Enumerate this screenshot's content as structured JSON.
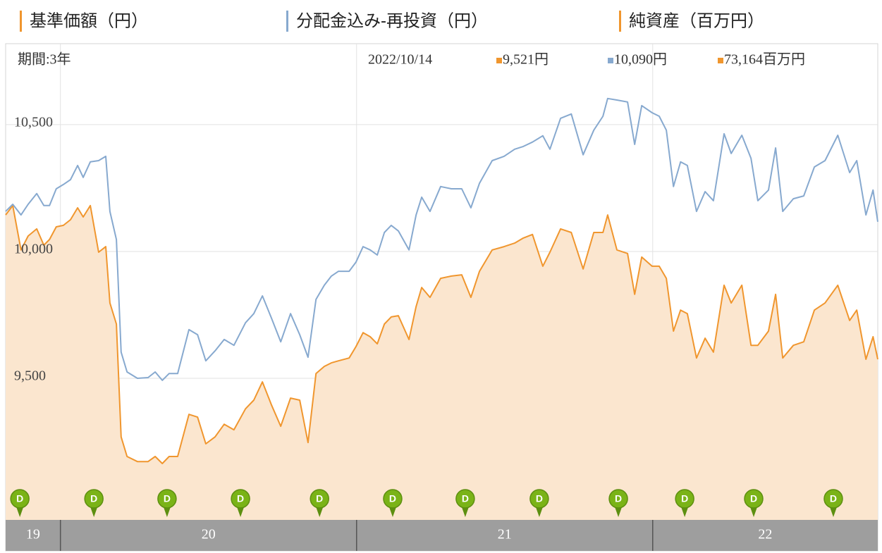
{
  "chart_data": {
    "type": "line",
    "legend_extra": {
      "name": "純資産（百万円）",
      "color": "#f0962e"
    },
    "readout": {
      "period": "期間:3年",
      "date": "2022/10/14",
      "items": [
        {
          "label": "9,521円",
          "color": "#f0962e"
        },
        {
          "label": "10,090円",
          "color": "#87a9cf"
        },
        {
          "label": "73,164百万円",
          "color": "#f0962e"
        }
      ]
    },
    "xlim": [
      2019.815,
      2022.76
    ],
    "xticks": [
      2020,
      2021,
      2022
    ],
    "year_labels": [
      "19",
      "20",
      "21",
      "22"
    ],
    "ylim": [
      8942,
      10819
    ],
    "yticks": [
      {
        "value": 9500,
        "label": "9,500"
      },
      {
        "value": 10000,
        "label": "10,000"
      },
      {
        "value": 10500,
        "label": "10,500"
      }
    ],
    "grid": true,
    "x": [
      2019.815,
      2019.839,
      2019.867,
      2019.891,
      2019.92,
      2019.944,
      2019.963,
      2019.986,
      2020.01,
      2020.034,
      2020.058,
      2020.077,
      2020.101,
      2020.129,
      2020.153,
      2020.167,
      2020.189,
      2020.205,
      2020.225,
      2020.26,
      2020.296,
      2020.32,
      2020.344,
      2020.367,
      2020.396,
      2020.434,
      2020.463,
      2020.491,
      2020.522,
      2020.553,
      2020.586,
      2020.625,
      2020.653,
      2020.682,
      2020.713,
      2020.744,
      2020.777,
      2020.808,
      2020.836,
      2020.863,
      2020.891,
      2020.915,
      2020.939,
      2020.975,
      2020.998,
      2021.022,
      2021.046,
      2021.07,
      2021.094,
      2021.117,
      2021.141,
      2021.177,
      2021.201,
      2021.22,
      2021.248,
      2021.284,
      2021.32,
      2021.355,
      2021.386,
      2021.415,
      2021.458,
      2021.498,
      2021.534,
      2021.563,
      2021.594,
      2021.629,
      2021.653,
      2021.689,
      2021.725,
      2021.765,
      2021.801,
      2021.832,
      2021.848,
      2021.879,
      2021.915,
      2021.939,
      2021.963,
      2021.998,
      2022.022,
      2022.046,
      2022.07,
      2022.094,
      2022.117,
      2022.148,
      2022.177,
      2022.205,
      2022.241,
      2022.265,
      2022.301,
      2022.332,
      2022.355,
      2022.391,
      2022.415,
      2022.439,
      2022.475,
      2022.51,
      2022.546,
      2022.582,
      2022.625,
      2022.665,
      2022.689,
      2022.72,
      2022.744,
      2022.76
    ],
    "series": [
      {
        "name": "基準価額（円）",
        "color": "#f0962e",
        "fill": "#fbe6cf",
        "values": [
          10144,
          10181,
          10006,
          10061,
          10089,
          10025,
          10047,
          10097,
          10103,
          10125,
          10172,
          10136,
          10181,
          9997,
          10019,
          9797,
          9714,
          9269,
          9192,
          9172,
          9172,
          9192,
          9164,
          9192,
          9192,
          9358,
          9347,
          9242,
          9269,
          9319,
          9297,
          9380,
          9414,
          9486,
          9394,
          9311,
          9422,
          9414,
          9247,
          9519,
          9547,
          9561,
          9569,
          9580,
          9625,
          9680,
          9664,
          9636,
          9714,
          9742,
          9747,
          9653,
          9783,
          9858,
          9819,
          9894,
          9903,
          9908,
          9819,
          9922,
          10006,
          10019,
          10033,
          10053,
          10067,
          9942,
          9997,
          10089,
          10075,
          9931,
          10075,
          10075,
          10144,
          10006,
          9992,
          9831,
          9978,
          9942,
          9942,
          9894,
          9686,
          9769,
          9755,
          9580,
          9658,
          9603,
          9867,
          9797,
          9867,
          9630,
          9630,
          9686,
          9831,
          9580,
          9630,
          9644,
          9769,
          9797,
          9867,
          9728,
          9769,
          9575,
          9664,
          9575
        ]
      },
      {
        "name": "分配金込み-再投資（円）",
        "color": "#87a9cf",
        "values": [
          10158,
          10186,
          10144,
          10186,
          10228,
          10181,
          10181,
          10247,
          10264,
          10283,
          10339,
          10292,
          10353,
          10358,
          10375,
          10158,
          10047,
          9603,
          9525,
          9500,
          9503,
          9525,
          9492,
          9519,
          9519,
          9692,
          9672,
          9569,
          9608,
          9653,
          9630,
          9719,
          9755,
          9825,
          9736,
          9644,
          9755,
          9672,
          9583,
          9811,
          9867,
          9903,
          9922,
          9922,
          9958,
          10019,
          10006,
          9986,
          10075,
          10103,
          10081,
          10006,
          10144,
          10214,
          10158,
          10256,
          10247,
          10247,
          10172,
          10269,
          10358,
          10375,
          10403,
          10414,
          10431,
          10456,
          10403,
          10525,
          10542,
          10381,
          10478,
          10533,
          10603,
          10597,
          10589,
          10422,
          10575,
          10547,
          10533,
          10478,
          10256,
          10353,
          10339,
          10158,
          10236,
          10200,
          10464,
          10386,
          10458,
          10367,
          10200,
          10242,
          10408,
          10158,
          10208,
          10219,
          10333,
          10358,
          10458,
          10311,
          10358,
          10144,
          10242,
          10117
        ]
      }
    ],
    "distributions": {
      "label": "D",
      "color": "#7ab317",
      "x": [
        2019.863,
        2020.113,
        2020.36,
        2020.608,
        2020.875,
        2021.122,
        2021.367,
        2021.617,
        2021.884,
        2022.108,
        2022.341,
        2022.61
      ]
    }
  }
}
